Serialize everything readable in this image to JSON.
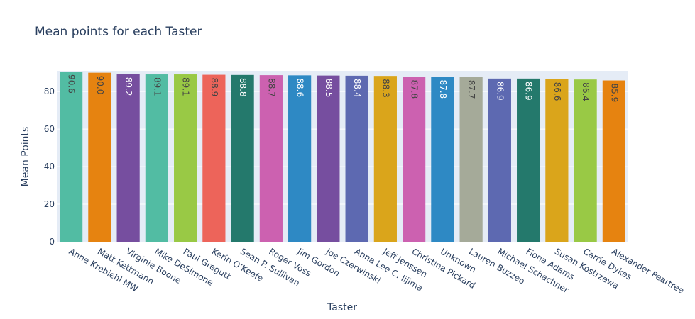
{
  "chart_data": {
    "type": "bar",
    "title": "Mean points for each Taster",
    "xlabel": "Taster",
    "ylabel": "Mean Points",
    "ylim": [
      0,
      91
    ],
    "yticks": [
      0,
      20,
      40,
      60,
      80
    ],
    "grid": true,
    "categories": [
      "Anne Krebiehl MW",
      "Matt Kettmann",
      "Virginie Boone",
      "Mike DeSimone",
      "Paul Gregutt",
      "Kerin O’Keefe",
      "Sean P. Sullivan",
      "Roger Voss",
      "Jim Gordon",
      "Joe Czerwinski",
      "Anna Lee C. Iijima",
      "Jeff Jenssen",
      "Christina Pickard",
      "Unknown",
      "Lauren Buzzeo",
      "Michael Schachner",
      "Fiona Adams",
      "Susan Kostrzewa",
      "Carrie Dykes",
      "Alexander Peartree"
    ],
    "values": [
      90.6,
      90.0,
      89.2,
      89.1,
      89.1,
      88.9,
      88.8,
      88.7,
      88.6,
      88.5,
      88.4,
      88.3,
      87.8,
      87.8,
      87.7,
      86.9,
      86.9,
      86.6,
      86.4,
      85.9
    ],
    "data_labels": [
      "90.6",
      "90.0",
      "89.2",
      "89.1",
      "89.1",
      "88.9",
      "88.8",
      "88.7",
      "88.6",
      "88.5",
      "88.4",
      "88.3",
      "87.8",
      "87.8",
      "87.7",
      "86.9",
      "86.9",
      "86.6",
      "86.4",
      "85.9"
    ],
    "colors": [
      "#52bca3",
      "#e68310",
      "#764e9f",
      "#52bca3",
      "#99c945",
      "#ed645a",
      "#24796c",
      "#cc61b0",
      "#2e89c4",
      "#764e9f",
      "#5d69b1",
      "#daa51b",
      "#cc61b0",
      "#2e89c4",
      "#a5aa99",
      "#5d69b1",
      "#24796c",
      "#daa51b",
      "#99c945",
      "#e68310"
    ],
    "label_colors": [
      "#444444",
      "#444444",
      "#ffffff",
      "#444444",
      "#444444",
      "#444444",
      "#ffffff",
      "#444444",
      "#ffffff",
      "#ffffff",
      "#ffffff",
      "#444444",
      "#444444",
      "#ffffff",
      "#444444",
      "#ffffff",
      "#ffffff",
      "#444444",
      "#444444",
      "#444444"
    ],
    "plot_background": "#e5ecf6"
  }
}
